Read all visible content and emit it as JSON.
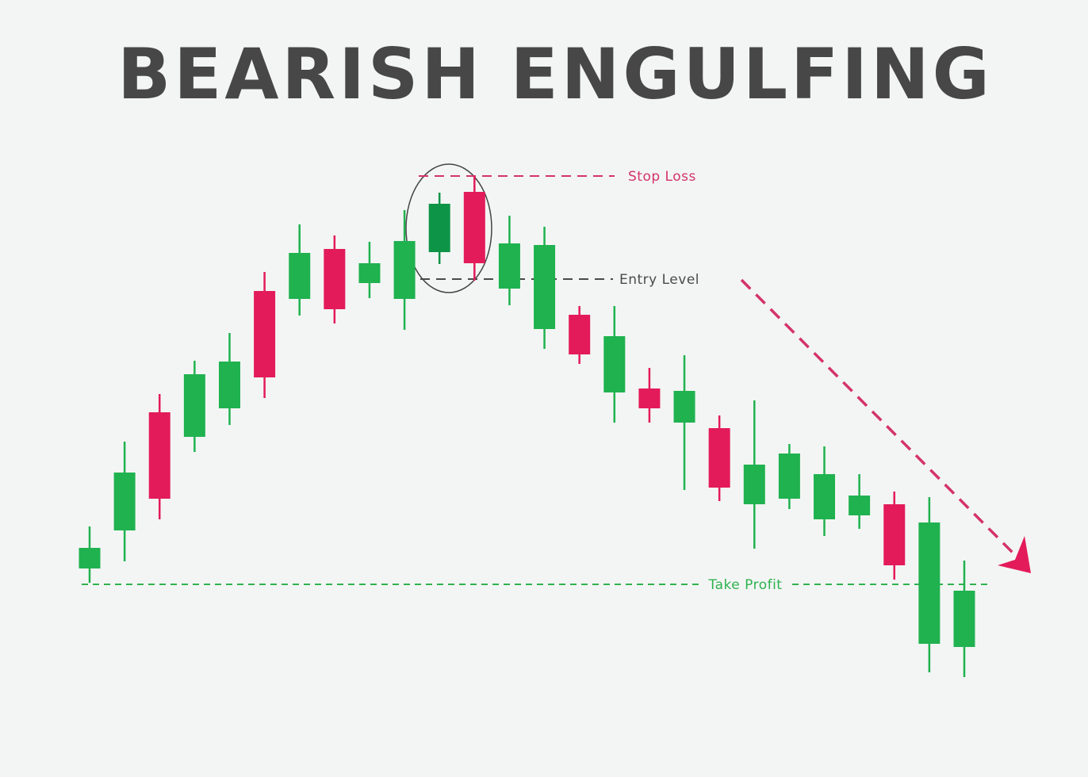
{
  "chart_data": {
    "type": "candlestick",
    "title": "BEARISH ENGULFING",
    "open": [
      263,
      311,
      460,
      429,
      465,
      613,
      603,
      666,
      623,
      603,
      662,
      738,
      616,
      565,
      583,
      485,
      490,
      447,
      440,
      344,
      351,
      325,
      330,
      344,
      168,
      164
    ],
    "high": [
      316,
      423,
      483,
      525,
      560,
      637,
      697,
      683,
      675,
      715,
      737,
      758,
      708,
      694,
      594,
      594,
      516,
      532,
      456,
      475,
      420,
      417,
      382,
      360,
      353,
      273
    ],
    "low": [
      245,
      272,
      325,
      410,
      444,
      478,
      582,
      572,
      604,
      564,
      647,
      626,
      595,
      540,
      521,
      447,
      447,
      362,
      348,
      288,
      338,
      304,
      313,
      249,
      132,
      126
    ],
    "close": [
      289,
      384,
      351,
      508,
      524,
      504,
      661,
      590,
      648,
      676,
      723,
      648,
      673,
      671,
      533,
      556,
      465,
      487,
      365,
      394,
      408,
      382,
      355,
      267,
      321,
      235
    ],
    "up_color": "#1fb24f",
    "down_color": "#e31b5a",
    "highlight_index": 10,
    "highlight_color": "#0e9447",
    "ylim": [
      0,
      980
    ],
    "levels": [
      {
        "label": "Stop Loss",
        "value": 758,
        "color": "#d4336a"
      },
      {
        "label": "Entry Level",
        "value": 628,
        "color": "#4a4a4a"
      },
      {
        "label": "Take Profit",
        "value": 243,
        "color": "#2fb24f"
      }
    ]
  }
}
